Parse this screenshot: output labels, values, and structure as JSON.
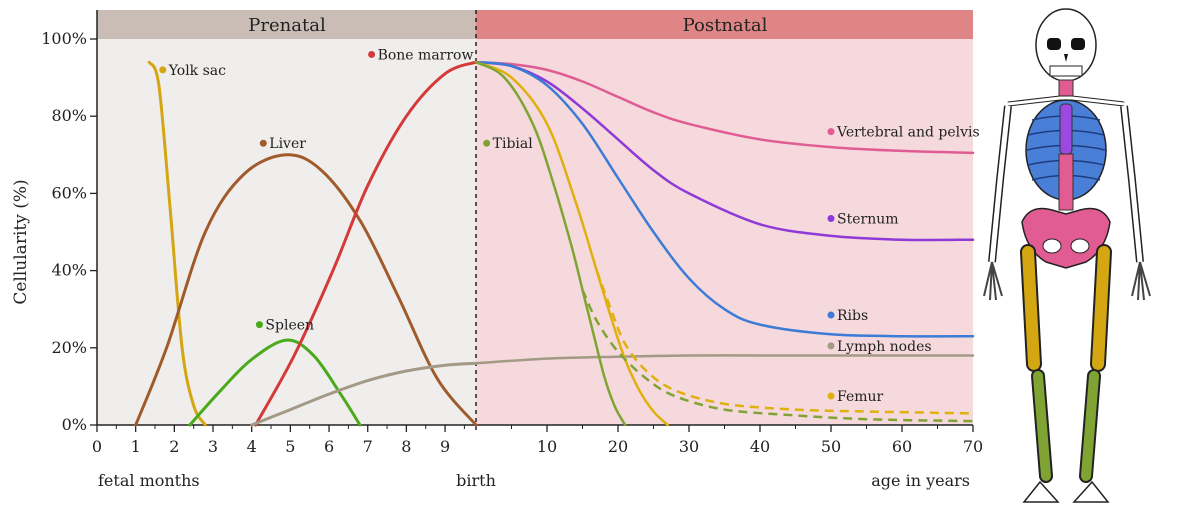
{
  "chart_data": {
    "type": "line",
    "ylabel": "Cellularity (%)",
    "ylim": [
      0,
      100
    ],
    "yticks": [
      "0%",
      "20%",
      "40%",
      "60%",
      "80%",
      "100%"
    ],
    "yvalues": [
      0,
      20,
      40,
      60,
      80,
      100
    ],
    "x_prenatal": {
      "ticks": [
        "0",
        "1",
        "2",
        "3",
        "4",
        "5",
        "6",
        "7",
        "8",
        "9"
      ],
      "label": "fetal months",
      "range": [
        0,
        9.8
      ]
    },
    "x_postnatal": {
      "ticks": [
        "10",
        "20",
        "30",
        "40",
        "50",
        "60",
        "70"
      ],
      "label": "age in years",
      "range": [
        0,
        70
      ]
    },
    "birth_label": "birth",
    "bands": {
      "prenatal": {
        "label": "Prenatal",
        "header_color": "#c9bdb6",
        "fill_color": "#f0eeec"
      },
      "postnatal": {
        "label": "Postnatal",
        "header_color": "#e08585",
        "fill_color": "#f5d9dc"
      }
    },
    "series": [
      {
        "name": "Yolk sac",
        "color": "#d4a612",
        "label_pos": {
          "x": 1.7,
          "y": 92
        },
        "prenatal": [
          [
            1.35,
            94
          ],
          [
            1.6,
            88
          ],
          [
            1.9,
            55
          ],
          [
            2.2,
            20
          ],
          [
            2.5,
            5
          ],
          [
            2.8,
            0
          ]
        ]
      },
      {
        "name": "Liver",
        "color": "#a05a2c",
        "label_pos": {
          "x": 4.3,
          "y": 73
        },
        "prenatal": [
          [
            1.0,
            0
          ],
          [
            1.8,
            20
          ],
          [
            2.8,
            50
          ],
          [
            3.8,
            65
          ],
          [
            4.9,
            70
          ],
          [
            5.8,
            66
          ],
          [
            6.8,
            53
          ],
          [
            7.8,
            33
          ],
          [
            8.8,
            12
          ],
          [
            9.8,
            0
          ]
        ]
      },
      {
        "name": "Spleen",
        "color": "#4aaa1a",
        "label_pos": {
          "x": 4.2,
          "y": 26
        },
        "prenatal": [
          [
            2.4,
            0
          ],
          [
            3.2,
            9
          ],
          [
            4.0,
            17
          ],
          [
            4.9,
            22
          ],
          [
            5.6,
            18
          ],
          [
            6.3,
            8
          ],
          [
            6.8,
            0
          ]
        ]
      },
      {
        "name": "Bone marrow",
        "color": "#d43a3a",
        "label_pos": {
          "x": 7.1,
          "y": 96
        },
        "prenatal": [
          [
            4.1,
            0
          ],
          [
            5.1,
            18
          ],
          [
            6.1,
            40
          ],
          [
            7.0,
            62
          ],
          [
            8.0,
            80
          ],
          [
            9.0,
            91
          ],
          [
            9.8,
            94
          ]
        ]
      },
      {
        "name": "Lymph nodes",
        "color": "#a39a85",
        "label_pos": {
          "x": 50,
          "y": 20.5
        },
        "prenatal": [
          [
            4.0,
            0
          ],
          [
            5.0,
            4
          ],
          [
            6.0,
            8
          ],
          [
            7.0,
            11.5
          ],
          [
            8.0,
            14
          ],
          [
            9.0,
            15.5
          ],
          [
            9.8,
            16
          ]
        ],
        "postnatal": [
          [
            0,
            16
          ],
          [
            10,
            17.2
          ],
          [
            20,
            17.7
          ],
          [
            30,
            18
          ],
          [
            40,
            18
          ],
          [
            50,
            18
          ],
          [
            60,
            18
          ],
          [
            70,
            18
          ]
        ]
      },
      {
        "name": "Vertebral and pelvis",
        "color": "#e05c93",
        "label_pos": {
          "x": 50,
          "y": 76
        },
        "postnatal": [
          [
            0,
            94
          ],
          [
            5,
            93.5
          ],
          [
            10,
            92
          ],
          [
            15,
            89
          ],
          [
            20,
            85
          ],
          [
            25,
            81
          ],
          [
            30,
            78
          ],
          [
            40,
            74
          ],
          [
            50,
            72
          ],
          [
            60,
            71
          ],
          [
            70,
            70.5
          ]
        ]
      },
      {
        "name": "Sternum",
        "color": "#8f3ad8",
        "label_pos": {
          "x": 50,
          "y": 53.5
        },
        "postnatal": [
          [
            0,
            94
          ],
          [
            5,
            93
          ],
          [
            10,
            89
          ],
          [
            15,
            82
          ],
          [
            20,
            74
          ],
          [
            25,
            66
          ],
          [
            30,
            60
          ],
          [
            40,
            52
          ],
          [
            50,
            49
          ],
          [
            60,
            48
          ],
          [
            70,
            48
          ]
        ]
      },
      {
        "name": "Ribs",
        "color": "#3c7bd6",
        "label_pos": {
          "x": 50,
          "y": 28.5
        },
        "postnatal": [
          [
            0,
            94
          ],
          [
            5,
            93
          ],
          [
            10,
            88
          ],
          [
            15,
            78
          ],
          [
            20,
            64
          ],
          [
            25,
            50
          ],
          [
            30,
            38
          ],
          [
            35,
            30
          ],
          [
            40,
            26
          ],
          [
            50,
            23.5
          ],
          [
            60,
            23
          ],
          [
            70,
            23
          ]
        ]
      },
      {
        "name": "Femur",
        "color": "#e0b00d",
        "label_pos": {
          "x": 50,
          "y": 7.5
        },
        "postnatal": [
          [
            0,
            94
          ],
          [
            5,
            90
          ],
          [
            10,
            78
          ],
          [
            14,
            58
          ],
          [
            17,
            40
          ],
          [
            19,
            28
          ],
          [
            21,
            17
          ],
          [
            23,
            9
          ],
          [
            25,
            3.5
          ],
          [
            27,
            0
          ]
        ],
        "postnatal_dashed": [
          [
            17,
            40
          ],
          [
            19,
            30
          ],
          [
            21,
            21
          ],
          [
            24,
            14
          ],
          [
            28,
            9
          ],
          [
            35,
            5.5
          ],
          [
            45,
            4
          ],
          [
            55,
            3.5
          ],
          [
            70,
            3
          ]
        ]
      },
      {
        "name": "Tibial",
        "color": "#7fa434",
        "label_pos": {
          "x": 1.5,
          "y": 73
        },
        "postnatal": [
          [
            0,
            94
          ],
          [
            4,
            90
          ],
          [
            8,
            78
          ],
          [
            11,
            62
          ],
          [
            13.5,
            46
          ],
          [
            15,
            35
          ],
          [
            16.5,
            24
          ],
          [
            18,
            13
          ],
          [
            19.5,
            5
          ],
          [
            21,
            0
          ]
        ],
        "postnatal_dashed": [
          [
            15,
            35
          ],
          [
            17,
            27
          ],
          [
            20,
            19
          ],
          [
            24,
            12
          ],
          [
            28,
            7.5
          ],
          [
            35,
            4
          ],
          [
            45,
            2.5
          ],
          [
            55,
            1.5
          ],
          [
            70,
            1
          ]
        ]
      }
    ]
  }
}
